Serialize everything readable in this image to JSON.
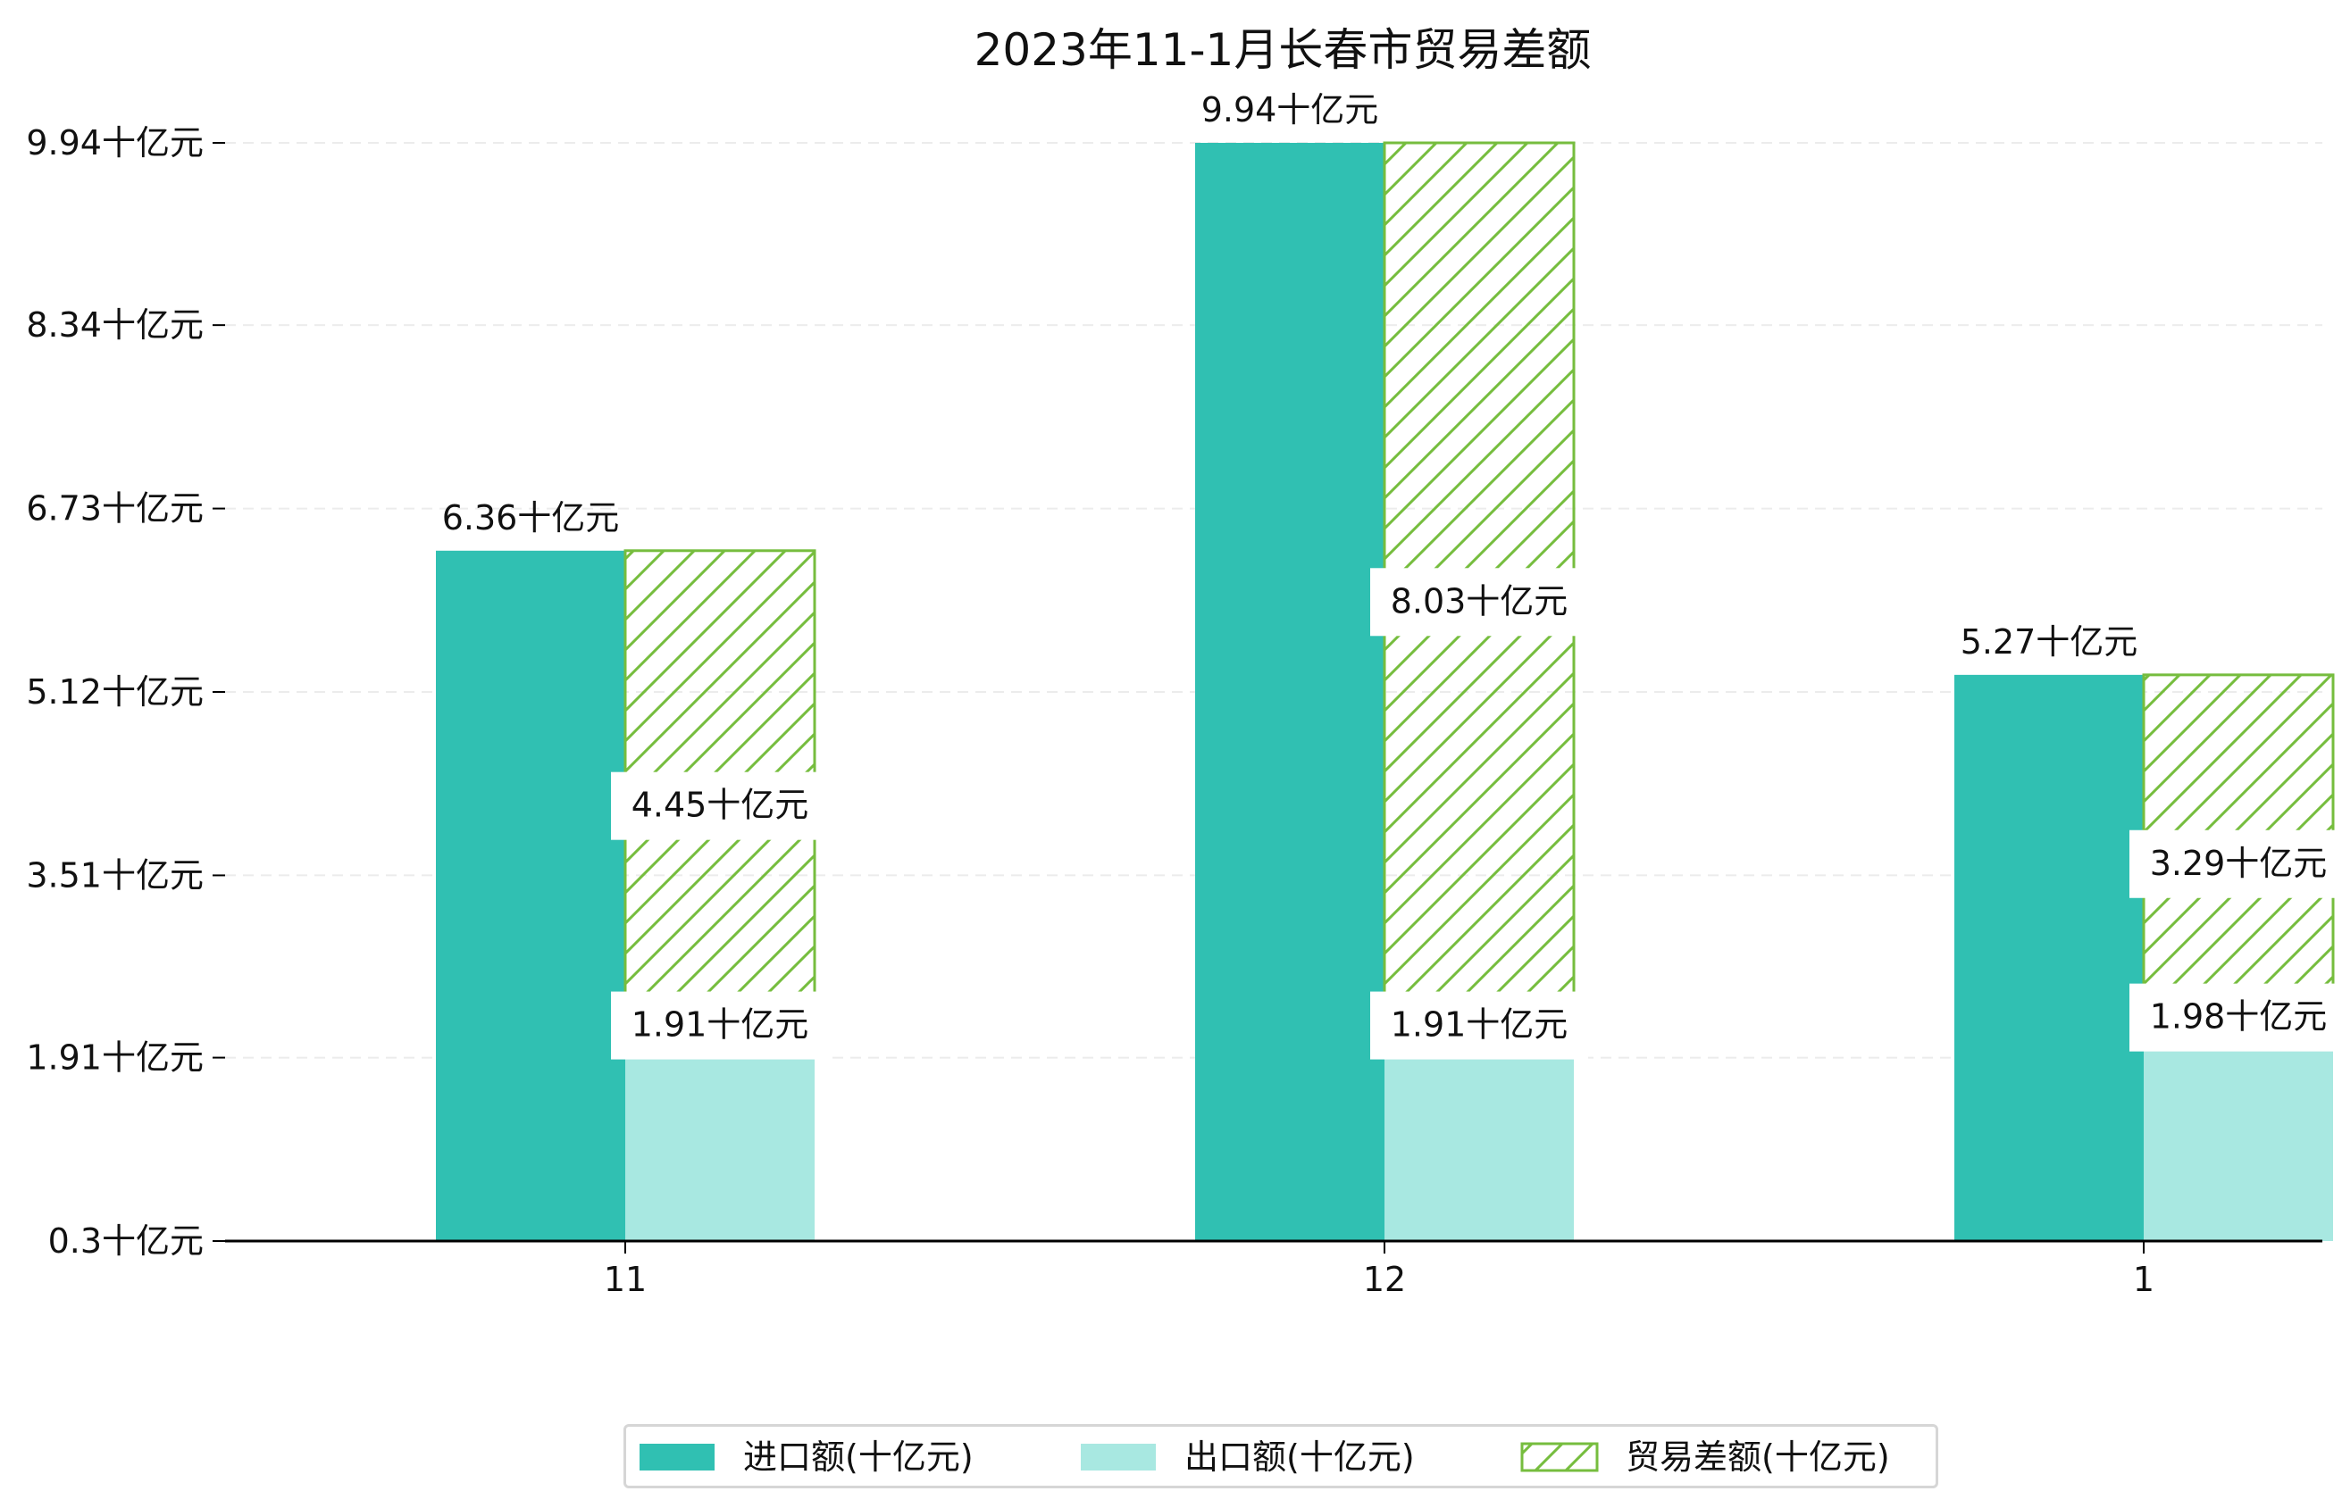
{
  "chart_data": {
    "type": "bar",
    "title": "2023年11-1月长春市贸易差额",
    "xlabel": "",
    "ylabel": "",
    "categories": [
      "11",
      "12",
      "1"
    ],
    "series": [
      {
        "name": "进口额(十亿元)",
        "values": [
          6.36,
          9.94,
          5.27
        ],
        "labels": [
          "6.36十亿元",
          "9.94十亿元",
          "5.27十亿元"
        ]
      },
      {
        "name": "出口额(十亿元)",
        "values": [
          1.91,
          1.91,
          1.98
        ],
        "labels": [
          "1.91十亿元",
          "1.91十亿元",
          "1.98十亿元"
        ]
      },
      {
        "name": "贸易差额(十亿元)",
        "values": [
          4.45,
          8.03,
          3.29
        ],
        "labels": [
          "4.45十亿元",
          "8.03十亿元",
          "3.29十亿元"
        ]
      }
    ],
    "yticks": [
      0.3,
      1.91,
      3.51,
      5.12,
      6.73,
      8.34,
      9.94
    ],
    "ytick_labels": [
      "0.3十亿元",
      "1.91十亿元",
      "3.51十亿元",
      "5.12十亿元",
      "6.73十亿元",
      "8.34十亿元",
      "9.94十亿元"
    ],
    "ylim": [
      0.3,
      9.94
    ],
    "grid": true,
    "legend_position": "bottom-center",
    "colors": {
      "import": "#30c0b2",
      "export": "#a8e8e1",
      "balance_edge": "#76bd3e",
      "axis": "#000000",
      "grid": "#ececec"
    }
  }
}
